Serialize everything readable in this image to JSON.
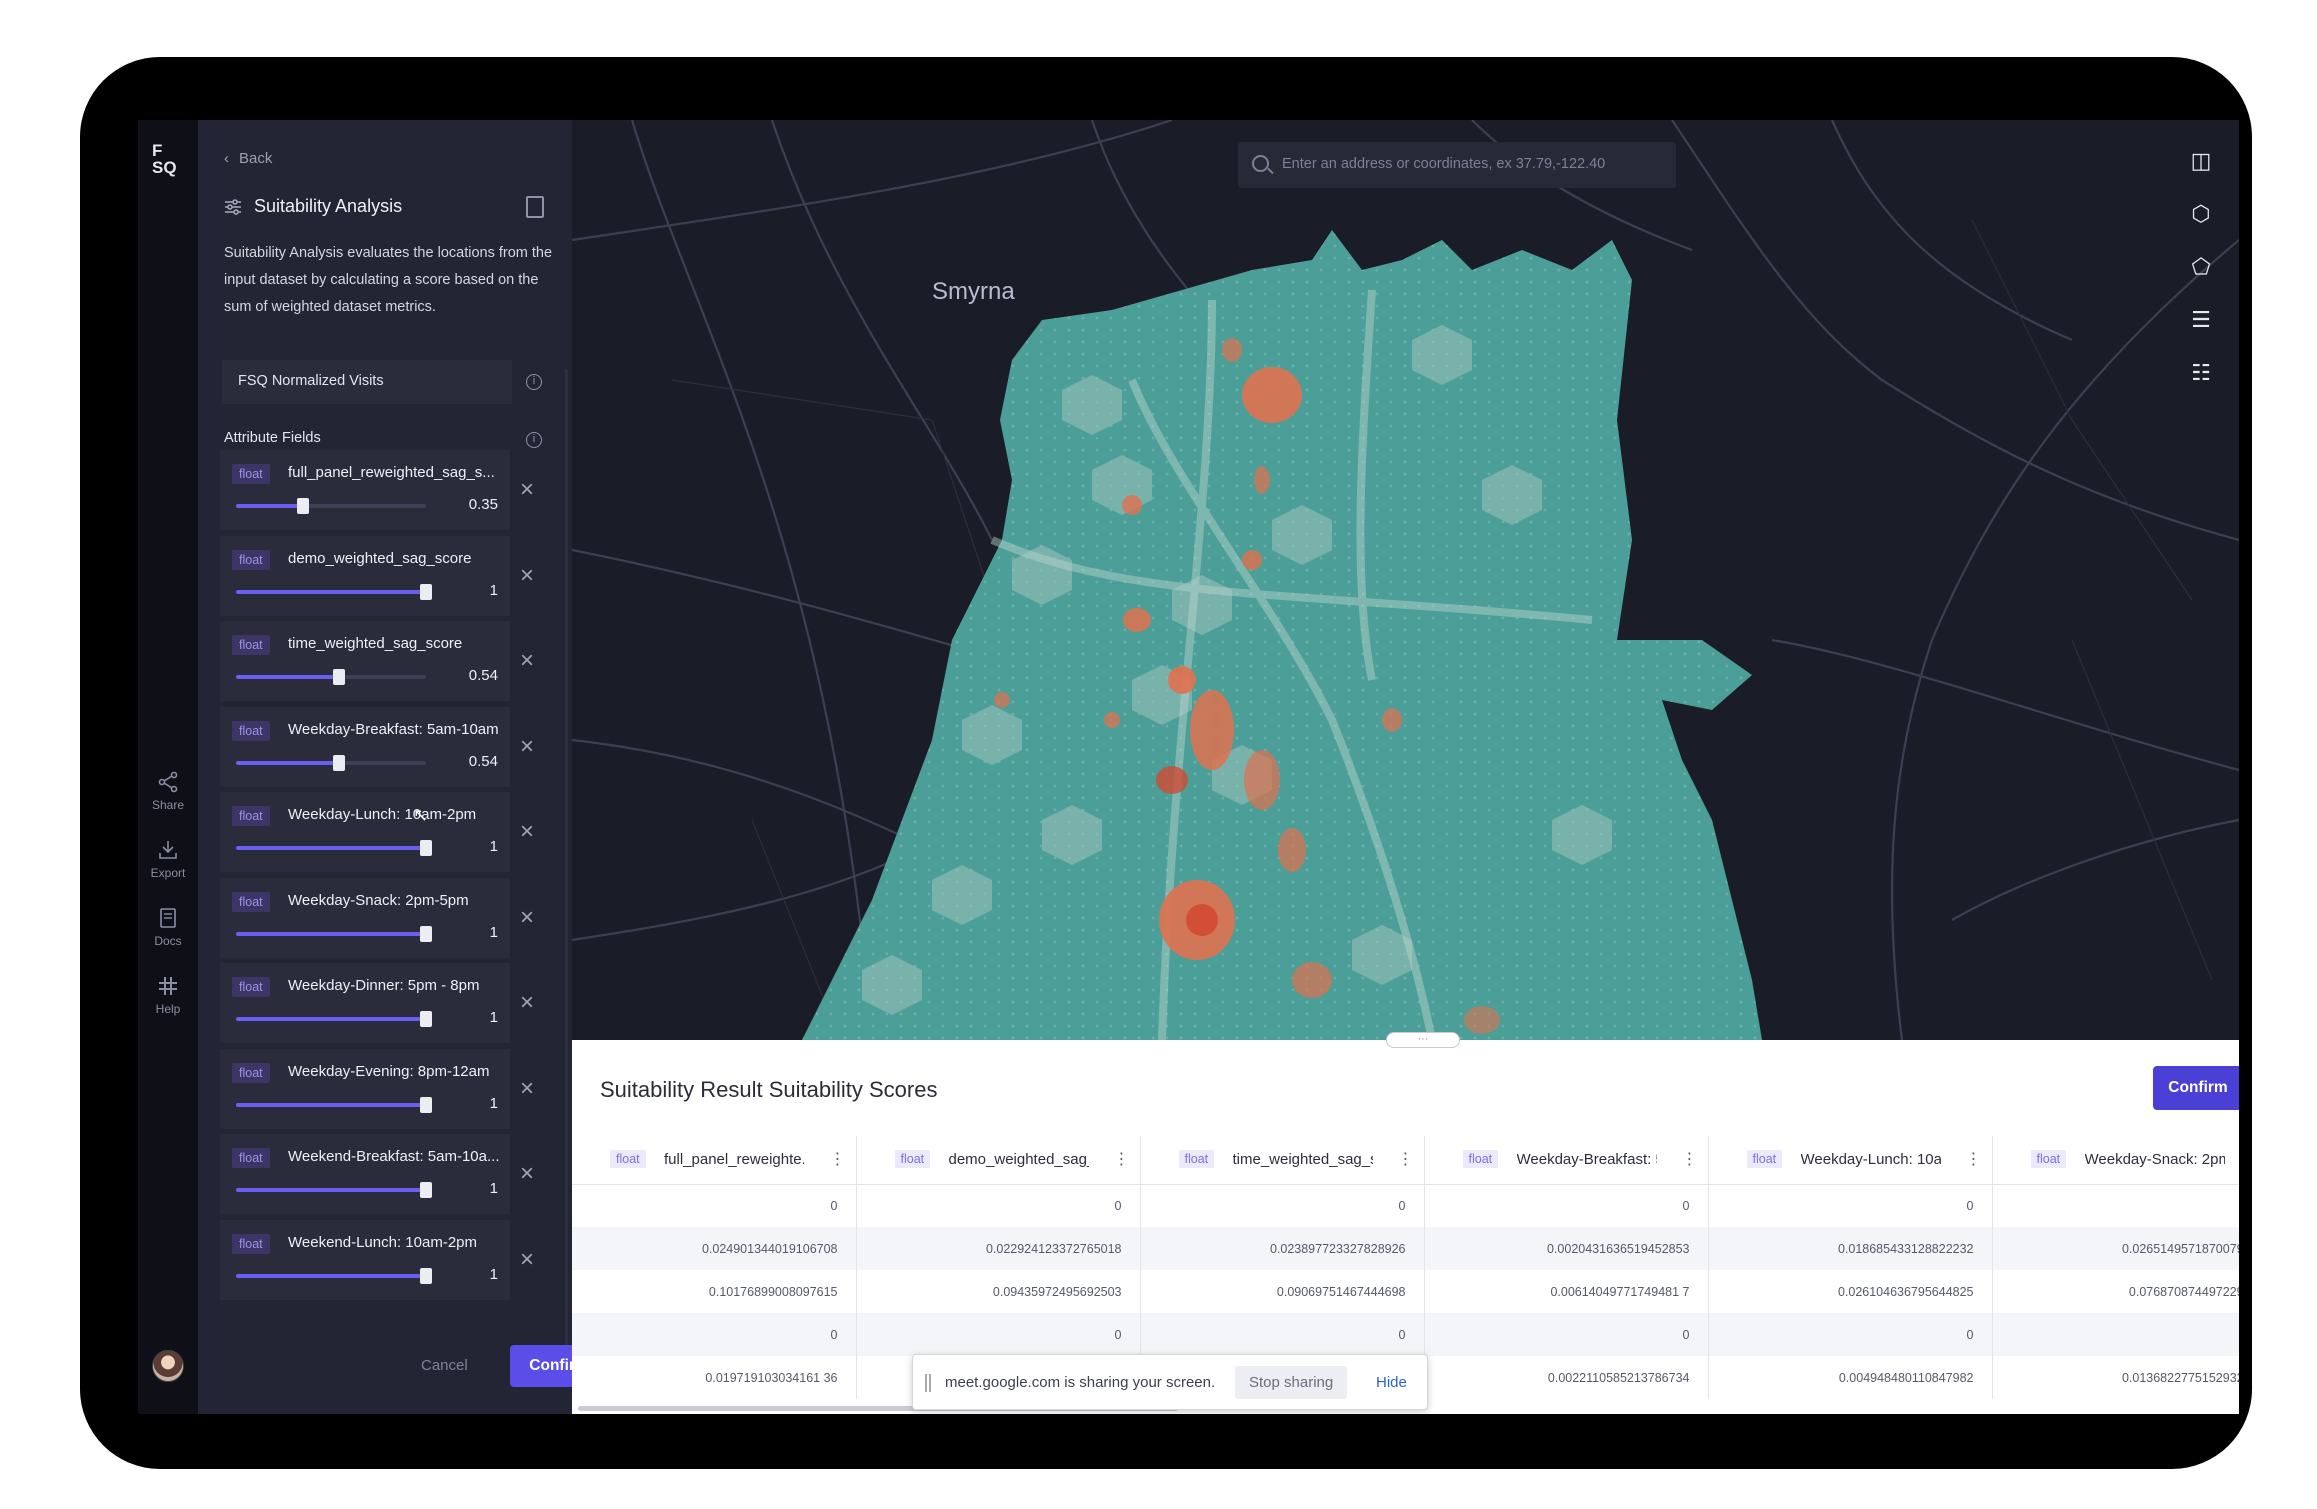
{
  "rail": {
    "logo": "F SQ",
    "items": [
      {
        "label": "Share",
        "icon": "share-icon"
      },
      {
        "label": "Export",
        "icon": "export-icon"
      },
      {
        "label": "Docs",
        "icon": "docs-icon"
      },
      {
        "label": "Help",
        "icon": "help-icon"
      }
    ]
  },
  "panel": {
    "back_label": "Back",
    "title": "Suitability Analysis",
    "description": "Suitability Analysis evaluates the locations from the input dataset by calculating a score based on the sum of weighted dataset metrics.",
    "dataset_label": "FSQ Normalized Visits",
    "attribute_fields_label": "Attribute Fields",
    "fields": [
      {
        "type": "float",
        "name": "full_panel_reweighted_sag_s...",
        "value": "0.35",
        "weight": 0.35
      },
      {
        "type": "float",
        "name": "demo_weighted_sag_score",
        "value": "1",
        "weight": 1
      },
      {
        "type": "float",
        "name": "time_weighted_sag_score",
        "value": "0.54",
        "weight": 0.54
      },
      {
        "type": "float",
        "name": "Weekday-Breakfast: 5am-10am",
        "value": "0.54",
        "weight": 0.54
      },
      {
        "type": "float",
        "name": "Weekday-Lunch: 10am-2pm",
        "value": "1",
        "weight": 1
      },
      {
        "type": "float",
        "name": "Weekday-Snack: 2pm-5pm",
        "value": "1",
        "weight": 1
      },
      {
        "type": "float",
        "name": "Weekday-Dinner: 5pm - 8pm",
        "value": "1",
        "weight": 1
      },
      {
        "type": "float",
        "name": "Weekday-Evening: 8pm-12am",
        "value": "1",
        "weight": 1
      },
      {
        "type": "float",
        "name": "Weekend-Breakfast: 5am-10a...",
        "value": "1",
        "weight": 1
      },
      {
        "type": "float",
        "name": "Weekend-Lunch: 10am-2pm",
        "value": "1",
        "weight": 1
      }
    ],
    "cancel_label": "Cancel",
    "confirm_label": "Confirm"
  },
  "map": {
    "search_placeholder": "Enter an address or coordinates, ex 37.79,-122.40",
    "city_label": "Smyrna",
    "colors": {
      "background": "#1a1d27",
      "teal": "#4c9e98",
      "light": "#a9c9c2",
      "orange": "#e0714f",
      "red": "#d24a33"
    }
  },
  "table": {
    "title": "Suitability Result Suitability Scores",
    "confirm_label": "Confirm",
    "columns": [
      {
        "type": "float",
        "name": "full_panel_reweighte..."
      },
      {
        "type": "float",
        "name": "demo_weighted_sag_sc..."
      },
      {
        "type": "float",
        "name": "time_weighted_sag_score"
      },
      {
        "type": "float",
        "name": "Weekday-Breakfast: 5am..."
      },
      {
        "type": "float",
        "name": "Weekday-Lunch: 10am-2..."
      },
      {
        "type": "float",
        "name": "Weekday-Snack: 2pm-5..."
      },
      {
        "type": "flo",
        "name": ""
      }
    ],
    "rows": [
      [
        "0",
        "0",
        "0",
        "0",
        "0",
        "0"
      ],
      [
        "0.024901344019106708",
        "0.022924123372765018",
        "0.023897723327828926",
        "0.0020431636519452853",
        "0.018685433128822232",
        "0.026514957187007984"
      ],
      [
        "0.10176899008097615",
        "0.09435972495692503",
        "0.09069751467444698",
        "0.00614049771749481 7",
        "0.026104636795644825",
        "0.07687087449722943"
      ],
      [
        "0",
        "0",
        "0",
        "0",
        "0",
        "0"
      ],
      [
        "0.019719103034161 36",
        "",
        "",
        "0.0022110585213786734",
        "0.004948480110847982",
        "0.013682277515293214"
      ]
    ]
  },
  "share_bar": {
    "message": "meet.google.com is sharing your screen.",
    "stop_label": "Stop sharing",
    "hide_label": "Hide"
  }
}
